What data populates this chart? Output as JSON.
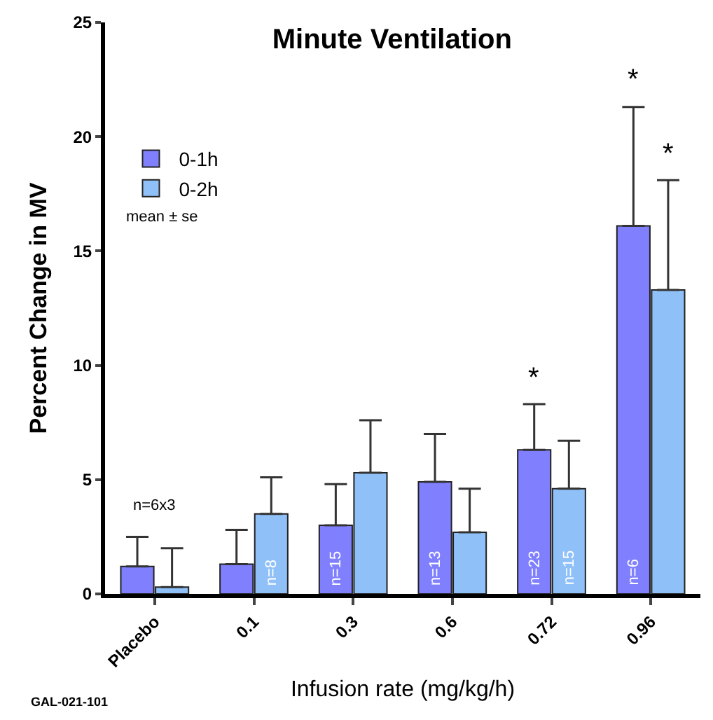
{
  "chart_data": {
    "type": "bar",
    "title": "Minute Ventilation",
    "xlabel": "Infusion rate (mg/kg/h)",
    "ylabel": "Percent Change in MV",
    "categories": [
      "Placebo",
      "0.1",
      "0.3",
      "0.6",
      "0.72",
      "0.96"
    ],
    "series": [
      {
        "name": "0-1h",
        "color": "#8080ff",
        "values": [
          1.2,
          1.3,
          3.0,
          4.9,
          6.3,
          16.1
        ],
        "errors": [
          [
            1.2,
            2.5
          ],
          [
            1.3,
            2.8
          ],
          [
            3.0,
            4.8
          ],
          [
            4.9,
            7.0
          ],
          [
            6.3,
            8.3
          ],
          [
            16.1,
            21.3
          ]
        ]
      },
      {
        "name": "0-2h",
        "color": "#90c0f8",
        "values": [
          0.3,
          3.5,
          5.3,
          2.7,
          4.6,
          13.3
        ],
        "errors": [
          [
            0.3,
            2.0
          ],
          [
            3.5,
            5.1
          ],
          [
            5.3,
            7.6
          ],
          [
            2.7,
            4.6
          ],
          [
            4.6,
            6.7
          ],
          [
            13.3,
            18.1
          ]
        ]
      }
    ],
    "ylim": [
      0,
      25
    ],
    "yticks": [
      0,
      5,
      10,
      15,
      20,
      25
    ],
    "legend": "top left",
    "annotations": [
      "n=6x3",
      "*",
      "*",
      "*",
      "mean ± se",
      "GAL-021-101",
      "n=8",
      "n=15",
      "n=13",
      "n=23",
      "n=15",
      "n=6"
    ]
  }
}
